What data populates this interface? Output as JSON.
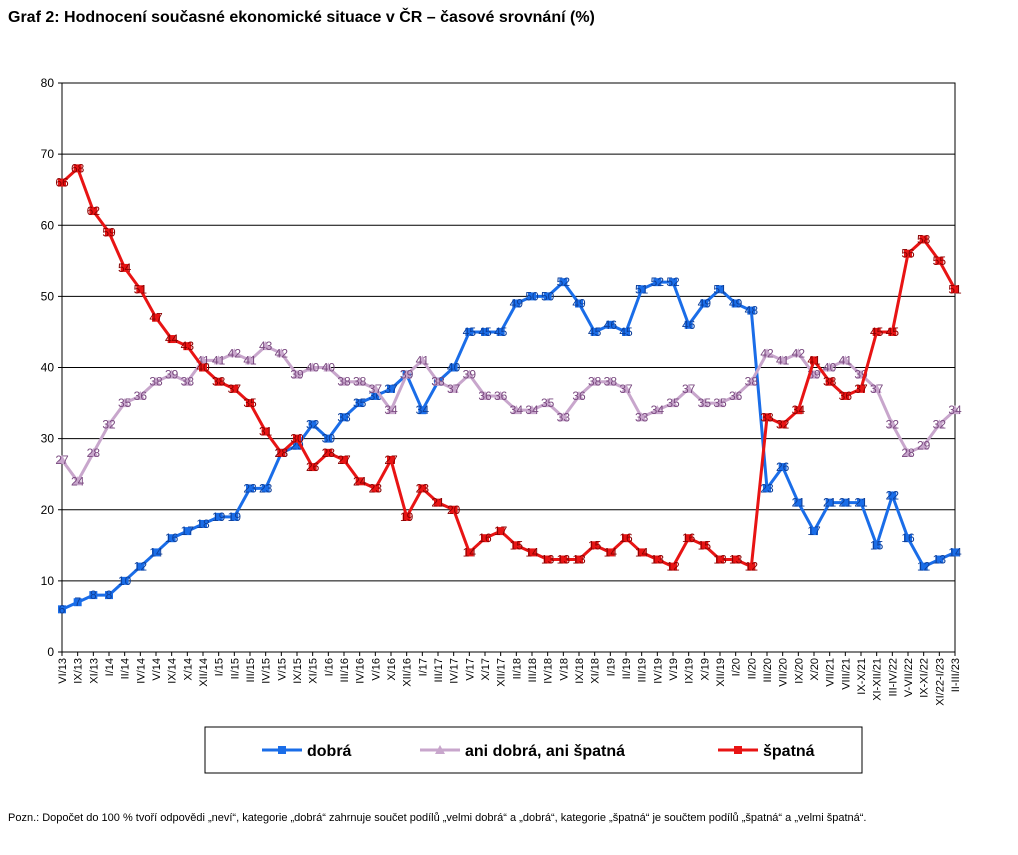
{
  "chart_data": {
    "type": "line",
    "title": "Graf 2: Hodnocení současné ekonomické situace v ČR – časové srovnání (%)",
    "note": "Pozn.: Dopočet do 100 % tvoří odpovědi „neví“, kategorie „dobrá“ zahrnuje součet podílů „velmi dobrá“ a „dobrá“, kategorie „špatná“ je součtem podílů „špatná“ a „velmi špatná“.",
    "categories": [
      "VI/13",
      "IX/13",
      "XI/13",
      "I/14",
      "II/14",
      "IV/14",
      "V/14",
      "IX/14",
      "X/14",
      "XII/14",
      "I/15",
      "II/15",
      "III/15",
      "IV/15",
      "V/15",
      "IX/15",
      "XI/15",
      "I/16",
      "III/16",
      "IV/16",
      "V/16",
      "X/16",
      "XII/16",
      "I/17",
      "III/17",
      "IV/17",
      "V/17",
      "X/17",
      "XII/17",
      "II/18",
      "III/18",
      "IV/18",
      "V/18",
      "IX/18",
      "XI/18",
      "I/19",
      "II/19",
      "III/19",
      "IV/19",
      "V/19",
      "IX/19",
      "X/19",
      "XII/19",
      "I/20",
      "II/20",
      "III/20",
      "VII/20",
      "IX/20",
      "X/20",
      "VII/21",
      "VIII/21",
      "IX-X/21",
      "XI-XII/21",
      "III-IV/22",
      "V-VII/22",
      "IX-XI/22",
      "XI/22-I/23",
      "II-III/23"
    ],
    "series": [
      {
        "name": "dobrá",
        "color": "#1a6de8",
        "marker": "square",
        "values": [
          6,
          7,
          8,
          8,
          10,
          12,
          14,
          16,
          17,
          18,
          19,
          19,
          23,
          23,
          28,
          29,
          32,
          30,
          33,
          35,
          36,
          37,
          39,
          34,
          38,
          40,
          45,
          45,
          45,
          49,
          50,
          50,
          52,
          49,
          45,
          46,
          45,
          51,
          52,
          52,
          46,
          49,
          51,
          49,
          48,
          23,
          26,
          21,
          17,
          21,
          21,
          21,
          15,
          22,
          16,
          12,
          13,
          14
        ]
      },
      {
        "name": "ani dobrá, ani špatná",
        "color": "#c8a6cc",
        "marker": "triangle",
        "values": [
          27,
          24,
          28,
          32,
          35,
          36,
          38,
          39,
          38,
          41,
          41,
          42,
          41,
          43,
          42,
          39,
          40,
          40,
          38,
          38,
          37,
          34,
          39,
          41,
          38,
          37,
          39,
          36,
          36,
          34,
          34,
          35,
          33,
          36,
          38,
          38,
          37,
          33,
          34,
          35,
          37,
          35,
          35,
          36,
          38,
          42,
          41,
          42,
          39,
          40,
          41,
          39,
          37,
          32,
          28,
          29,
          32,
          34
        ]
      },
      {
        "name": "špatná",
        "color": "#e81414",
        "marker": "square",
        "values": [
          66,
          68,
          62,
          59,
          54,
          51,
          47,
          44,
          43,
          40,
          38,
          37,
          35,
          31,
          28,
          30,
          26,
          28,
          27,
          24,
          23,
          27,
          19,
          23,
          21,
          20,
          14,
          16,
          17,
          15,
          14,
          13,
          13,
          13,
          15,
          14,
          16,
          14,
          13,
          12,
          16,
          15,
          13,
          13,
          12,
          33,
          32,
          34,
          41,
          38,
          36,
          37,
          45,
          45,
          56,
          58,
          55,
          51
        ]
      }
    ],
    "ylim": [
      0,
      80
    ],
    "yticks": [
      0,
      10,
      20,
      30,
      40,
      50,
      60,
      70,
      80
    ],
    "grid": true,
    "legend": "bottom"
  }
}
